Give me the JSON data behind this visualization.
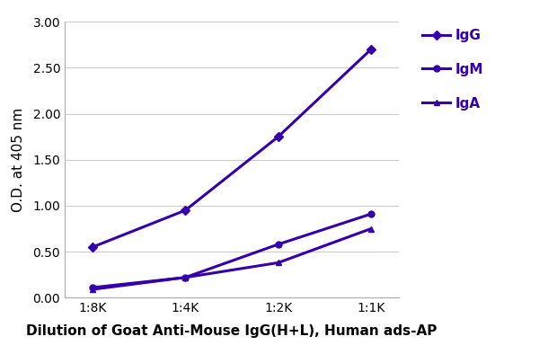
{
  "x_labels": [
    "1:8K",
    "1:4K",
    "1:2K",
    "1:1K"
  ],
  "x_values": [
    0,
    1,
    2,
    3
  ],
  "series": [
    {
      "name": "IgG",
      "y": [
        0.55,
        0.95,
        1.75,
        2.7
      ],
      "color": "#3300AA",
      "marker": "D",
      "markersize": 5,
      "linewidth": 2.2
    },
    {
      "name": "IgM",
      "y": [
        0.11,
        0.22,
        0.58,
        0.91
      ],
      "color": "#3300AA",
      "marker": "o",
      "markersize": 5,
      "linewidth": 2.2
    },
    {
      "name": "IgA",
      "y": [
        0.09,
        0.22,
        0.38,
        0.75
      ],
      "color": "#3300AA",
      "marker": "^",
      "markersize": 5,
      "linewidth": 2.2
    }
  ],
  "xlabel": "Dilution of Goat Anti-Mouse IgG(H+L), Human ads-AP",
  "ylabel": "O.D. at 405 nm",
  "ylim": [
    0.0,
    3.0
  ],
  "yticks": [
    0.0,
    0.5,
    1.0,
    1.5,
    2.0,
    2.5,
    3.0
  ],
  "background_color": "#ffffff",
  "grid_color": "#cccccc",
  "tick_fontsize": 10,
  "axis_label_fontsize": 11,
  "legend_fontsize": 11,
  "line_color": "#3300AA"
}
